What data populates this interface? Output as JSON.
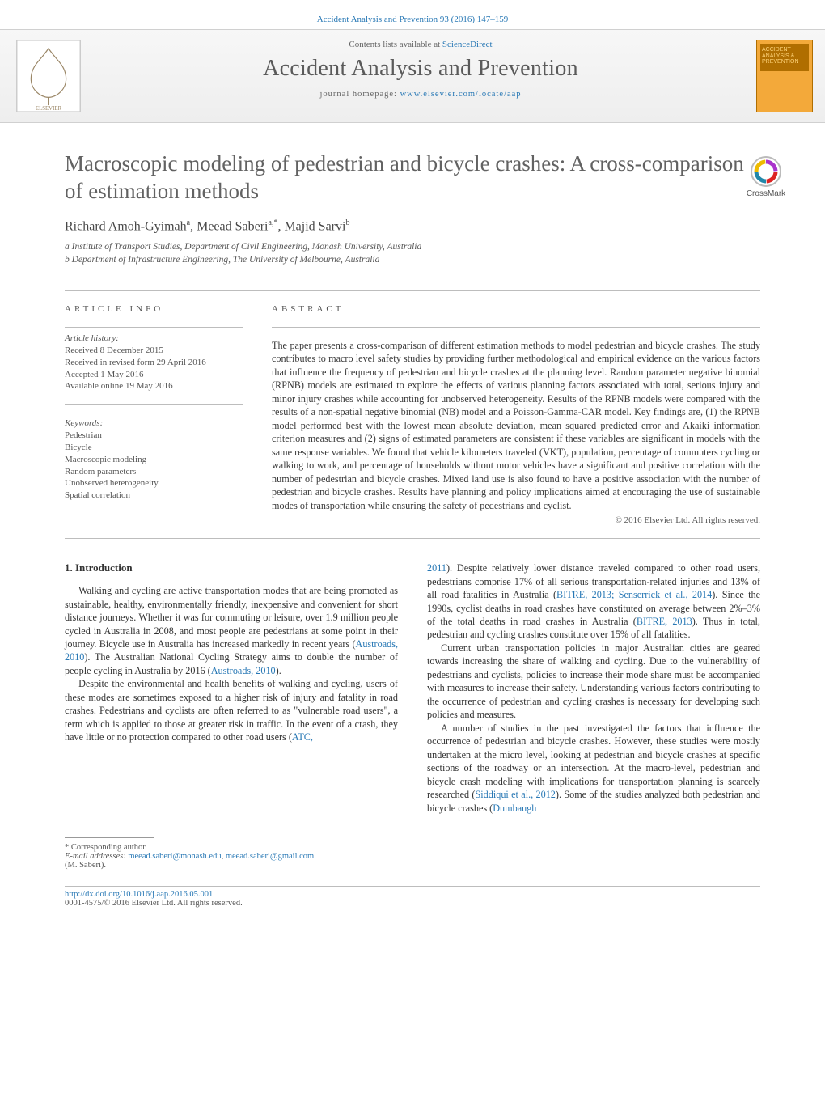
{
  "colors": {
    "link": "#2878b5",
    "text": "#333333",
    "muted": "#626262",
    "rule": "#bdbdbd",
    "band_bg_top": "#f7f7f7",
    "band_bg_bot": "#eeeeee",
    "cover_bg": "#f3a93a",
    "cover_dark": "#b06e00"
  },
  "typography": {
    "body_family": "Times New Roman",
    "title_size_pt": 20,
    "journal_size_pt": 21,
    "body_size_pt": 9,
    "abstract_size_pt": 9,
    "info_size_pt": 8
  },
  "top_citation": {
    "journal_link_text": "Accident Analysis and Prevention 93 (2016) 147–159"
  },
  "header": {
    "contents_text": "Contents lists available at ",
    "contents_link": "ScienceDirect",
    "journal_title": "Accident Analysis and Prevention",
    "homepage_label": "journal homepage: ",
    "homepage_link": "www.elsevier.com/locate/aap",
    "cover_title": "ACCIDENT ANALYSIS & PREVENTION"
  },
  "crossmark_label": "CrossMark",
  "article": {
    "title": "Macroscopic modeling of pedestrian and bicycle crashes: A cross-comparison of estimation methods",
    "authors_html": "Richard Amoh-Gyimah<sup>a</sup>, Meead Saberi<sup>a,*</sup>, Majid Sarvi<sup>b</sup>",
    "affiliations": [
      "a Institute of Transport Studies, Department of Civil Engineering, Monash University, Australia",
      "b Department of Infrastructure Engineering, The University of Melbourne, Australia"
    ]
  },
  "info": {
    "heading": "ARTICLE INFO",
    "history_label": "Article history:",
    "history": [
      "Received 8 December 2015",
      "Received in revised form 29 April 2016",
      "Accepted 1 May 2016",
      "Available online 19 May 2016"
    ],
    "keywords_label": "Keywords:",
    "keywords": [
      "Pedestrian",
      "Bicycle",
      "Macroscopic modeling",
      "Random parameters",
      "Unobserved heterogeneity",
      "Spatial correlation"
    ]
  },
  "abstract": {
    "heading": "ABSTRACT",
    "text": "The paper presents a cross-comparison of different estimation methods to model pedestrian and bicycle crashes. The study contributes to macro level safety studies by providing further methodological and empirical evidence on the various factors that influence the frequency of pedestrian and bicycle crashes at the planning level. Random parameter negative binomial (RPNB) models are estimated to explore the effects of various planning factors associated with total, serious injury and minor injury crashes while accounting for unobserved heterogeneity. Results of the RPNB models were compared with the results of a non-spatial negative binomial (NB) model and a Poisson-Gamma-CAR model. Key findings are, (1) the RPNB model performed best with the lowest mean absolute deviation, mean squared predicted error and Akaiki information criterion measures and (2) signs of estimated parameters are consistent if these variables are significant in models with the same response variables. We found that vehicle kilometers traveled (VKT), population, percentage of commuters cycling or walking to work, and percentage of households without motor vehicles have a significant and positive correlation with the number of pedestrian and bicycle crashes. Mixed land use is also found to have a positive association with the number of pedestrian and bicycle crashes. Results have planning and policy implications aimed at encouraging the use of sustainable modes of transportation while ensuring the safety of pedestrians and cyclist.",
    "copyright": "© 2016 Elsevier Ltd. All rights reserved."
  },
  "section1": {
    "heading": "1. Introduction"
  },
  "body": {
    "left": [
      "Walking and cycling are active transportation modes that are being promoted as sustainable, healthy, environmentally friendly, inexpensive and convenient for short distance journeys. Whether it was for commuting or leisure, over 1.9 million people cycled in Australia in 2008, and most people are pedestrians at some point in their journey. Bicycle use in Australia has increased markedly in recent years (<a href=\"#\">Austroads, 2010</a>). The Australian National Cycling Strategy aims to double the number of people cycling in Australia by 2016 (<a href=\"#\">Austroads, 2010</a>).",
      "Despite the environmental and health benefits of walking and cycling, users of these modes are sometimes exposed to a higher risk of injury and fatality in road crashes. Pedestrians and cyclists are often referred to as \"vulnerable road users\", a term which is applied to those at greater risk in traffic. In the event of a crash, they have little or no protection compared to other road users (<a href=\"#\">ATC,</a>"
    ],
    "right": [
      "<a href=\"#\">2011</a>). Despite relatively lower distance traveled compared to other road users, pedestrians comprise 17% of all serious transportation-related injuries and 13% of all road fatalities in Australia (<a href=\"#\">BITRE, 2013; Senserrick et al., 2014</a>). Since the 1990s, cyclist deaths in road crashes have constituted on average between 2%–3% of the total deaths in road crashes in Australia (<a href=\"#\">BITRE, 2013</a>). Thus in total, pedestrian and cycling crashes constitute over 15% of all fatalities.",
      "Current urban transportation policies in major Australian cities are geared towards increasing the share of walking and cycling. Due to the vulnerability of pedestrians and cyclists, policies to increase their mode share must be accompanied with measures to increase their safety. Understanding various factors contributing to the occurrence of pedestrian and cycling crashes is necessary for developing such policies and measures.",
      "A number of studies in the past investigated the factors that influence the occurrence of pedestrian and bicycle crashes. However, these studies were mostly undertaken at the micro level, looking at pedestrian and bicycle crashes at specific sections of the roadway or an intersection. At the macro-level, pedestrian and bicycle crash modeling with implications for transportation planning is scarcely researched (<a href=\"#\">Siddiqui et al., 2012</a>). Some of the studies analyzed both pedestrian and bicycle crashes (<a href=\"#\">Dumbaugh</a>"
    ]
  },
  "footnotes": {
    "corr_label": "* Corresponding author.",
    "email_label": "E-mail addresses: ",
    "emails": [
      "meead.saberi@monash.edu",
      "meead.saberi@gmail.com"
    ],
    "email_person": "(M. Saberi)."
  },
  "doi": {
    "link": "http://dx.doi.org/10.1016/j.aap.2016.05.001",
    "issn_line": "0001-4575/© 2016 Elsevier Ltd. All rights reserved."
  }
}
